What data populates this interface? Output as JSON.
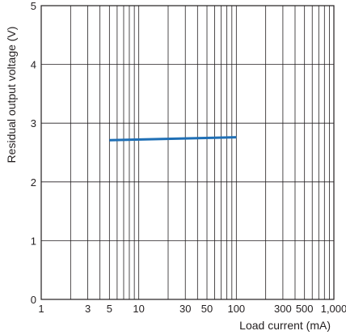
{
  "chart_data": {
    "type": "line",
    "title": "",
    "xlabel": "Load current (mA)",
    "ylabel": "Residual output voltage (V)",
    "x_scale": "log",
    "xlim": [
      1,
      1000
    ],
    "ylim": [
      0,
      5
    ],
    "grid": true,
    "x_tick_labels": [
      {
        "value": 1,
        "label": "1"
      },
      {
        "value": 3,
        "label": "3"
      },
      {
        "value": 5,
        "label": "5"
      },
      {
        "value": 10,
        "label": "10"
      },
      {
        "value": 30,
        "label": "30"
      },
      {
        "value": 50,
        "label": "50"
      },
      {
        "value": 100,
        "label": "100"
      },
      {
        "value": 300,
        "label": "300"
      },
      {
        "value": 500,
        "label": "500"
      },
      {
        "value": 1000,
        "label": "1,000"
      }
    ],
    "y_tick_labels": [
      {
        "value": 0,
        "label": "0"
      },
      {
        "value": 1,
        "label": "1"
      },
      {
        "value": 2,
        "label": "2"
      },
      {
        "value": 3,
        "label": "3"
      },
      {
        "value": 4,
        "label": "4"
      },
      {
        "value": 5,
        "label": "5"
      }
    ],
    "series": [
      {
        "color": "#1f6fb5",
        "x": [
          5,
          100
        ],
        "y": [
          2.71,
          2.76
        ]
      }
    ]
  }
}
